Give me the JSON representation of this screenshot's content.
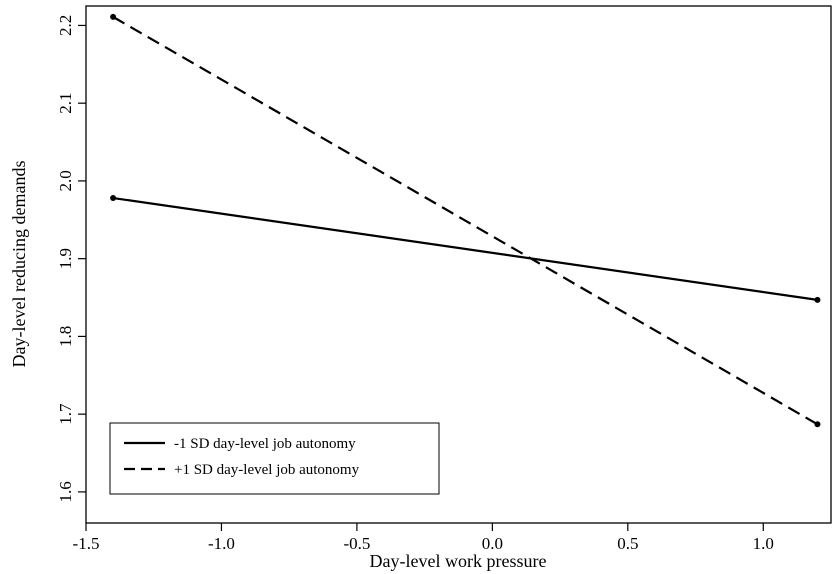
{
  "chart_data": {
    "type": "line",
    "title": "",
    "xlabel": "Day-level work pressure",
    "ylabel": "Day-level reducing demands",
    "xlim": [
      -1.5,
      1.25
    ],
    "ylim": [
      1.56,
      2.225
    ],
    "xticks": [
      -1.5,
      -1.0,
      -0.5,
      0.0,
      0.5,
      1.0
    ],
    "xtick_labels": [
      "-1.5",
      "-1.0",
      "-0.5",
      "0.0",
      "0.5",
      "1.0"
    ],
    "yticks": [
      1.6,
      1.7,
      1.8,
      1.9,
      2.0,
      2.1,
      2.2
    ],
    "ytick_labels": [
      "1.6",
      "1.7",
      "1.8",
      "1.9",
      "2.0",
      "2.1",
      "2.2"
    ],
    "grid": false,
    "legend_position": "bottom-left",
    "series": [
      {
        "name": "-1 SD day-level job autonomy",
        "style": "solid",
        "color": "#000000",
        "x": [
          -1.4,
          1.2
        ],
        "y": [
          1.978,
          1.847
        ]
      },
      {
        "name": "+1 SD day-level job autonomy",
        "style": "dashed",
        "color": "#000000",
        "x": [
          -1.4,
          1.2
        ],
        "y": [
          2.211,
          1.687
        ]
      }
    ]
  }
}
